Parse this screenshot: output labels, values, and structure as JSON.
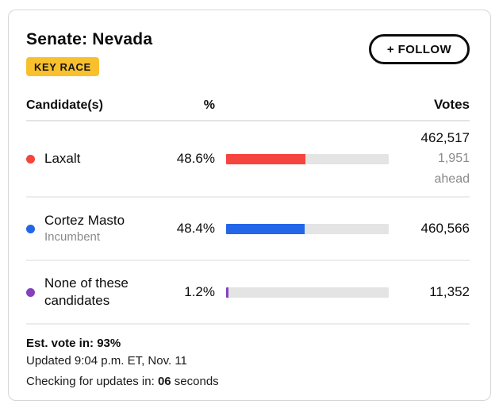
{
  "header": {
    "title": "Senate: Nevada",
    "badge": "KEY RACE",
    "follow_label": "+ FOLLOW"
  },
  "table": {
    "columns": {
      "candidate": "Candidate(s)",
      "percent": "%",
      "votes": "Votes"
    },
    "rows": [
      {
        "name": "Laxalt",
        "subtitle": "",
        "percent": "48.6%",
        "percent_value": 48.6,
        "votes": "462,517",
        "margin": "1,951",
        "margin_label": "ahead",
        "color": "#f6443e"
      },
      {
        "name": "Cortez Masto",
        "subtitle": "Incumbent",
        "percent": "48.4%",
        "percent_value": 48.4,
        "votes": "460,566",
        "color": "#2366e8"
      },
      {
        "name": "None of these candidates",
        "subtitle": "",
        "percent": "1.2%",
        "percent_value": 1.2,
        "votes": "11,352",
        "color": "#8540be"
      }
    ]
  },
  "footer": {
    "est_label": "Est. vote in:",
    "est_value": "93%",
    "updated": "Updated 9:04 p.m. ET, Nov. 11",
    "checking_prefix": "Checking for updates in:",
    "checking_value": "06",
    "checking_suffix": "seconds"
  },
  "colors": {
    "badge_bg": "#f8c02d",
    "bar_track": "#e4e4e4",
    "laxalt_red": "#f6443e",
    "masto_blue": "#2366e8",
    "none_purple": "#8540be",
    "muted_text": "#8a8a8a",
    "card_border": "#d6d6d6"
  }
}
